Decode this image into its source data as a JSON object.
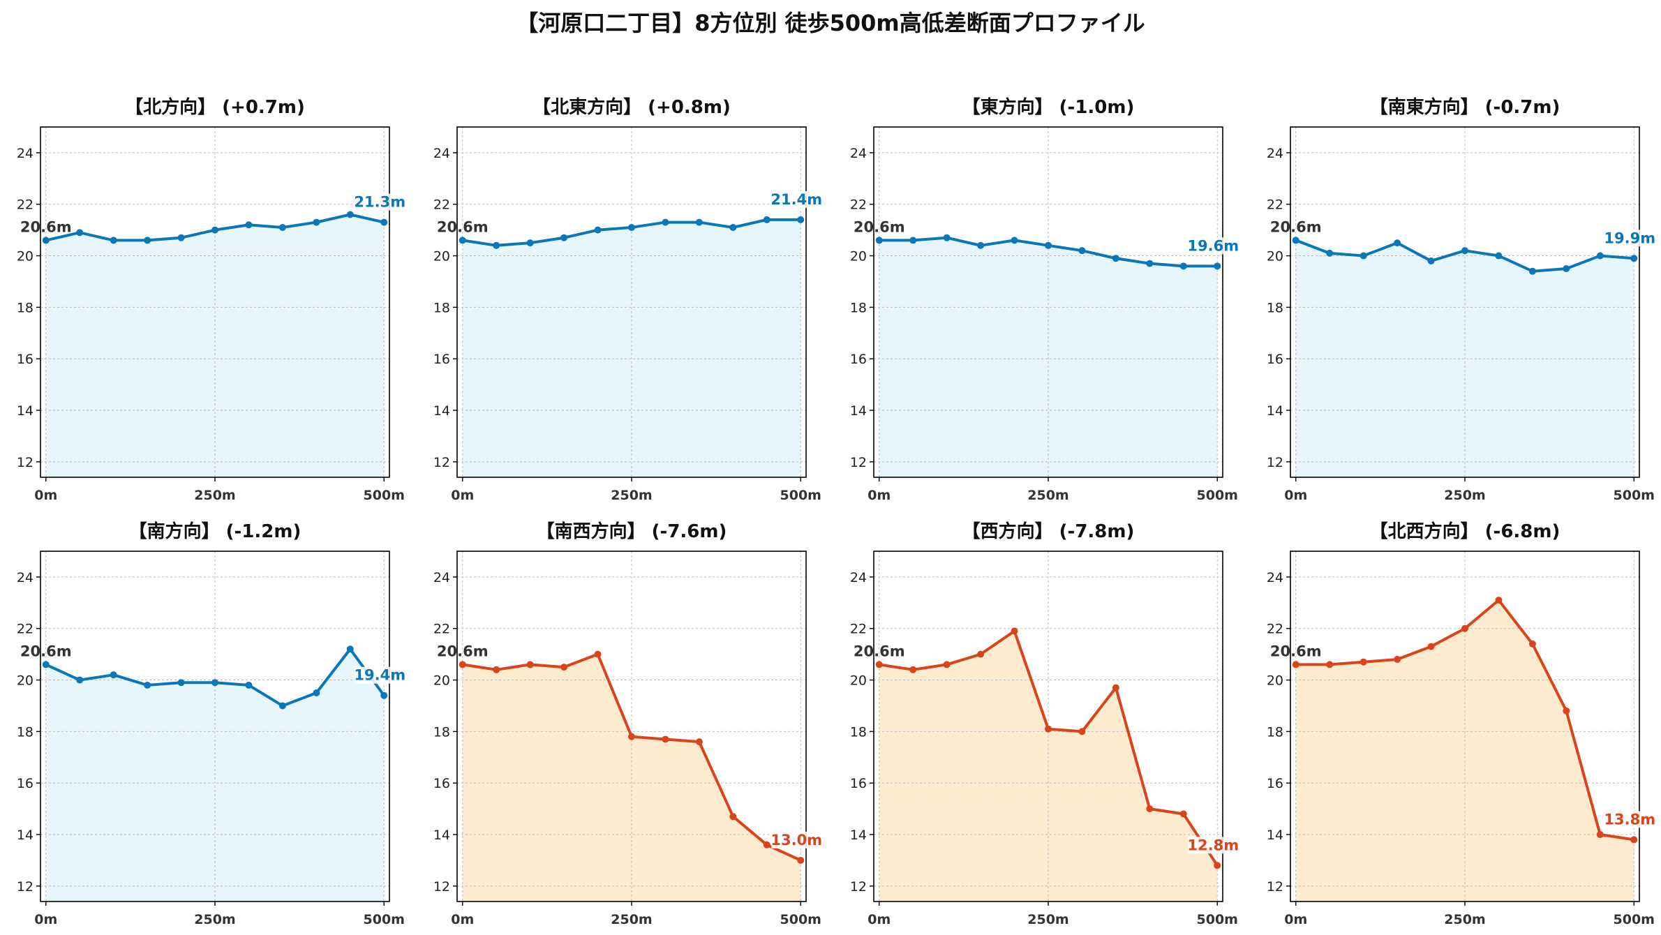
{
  "title": "【河原口二丁目】8方位別 徒歩500m高低差断面プロファイル",
  "colors": {
    "up_line": "#0a77b8",
    "up_fill": "#e6f6fc",
    "down_line": "#d9441a",
    "down_fill": "#fdebd0",
    "start_label": "#333333",
    "grid": "#bbbbbb"
  },
  "chart_data": [
    {
      "type": "area",
      "title": "【北方向】 (+0.7m)",
      "x": [
        0,
        50,
        100,
        150,
        200,
        250,
        300,
        350,
        400,
        450,
        500
      ],
      "values": [
        20.6,
        20.9,
        20.6,
        20.6,
        20.7,
        21.0,
        21.2,
        21.1,
        21.3,
        21.6,
        21.3
      ],
      "start_label": "20.6m",
      "end_label": "21.3m",
      "trend": "up",
      "xticks": [
        "0m",
        "250m",
        "500m"
      ],
      "yticks": [
        12,
        14,
        16,
        18,
        20,
        22,
        24
      ],
      "ylim": [
        11.4,
        25
      ],
      "xlim": [
        -8,
        508
      ],
      "grid": true
    },
    {
      "type": "area",
      "title": "【北東方向】 (+0.8m)",
      "x": [
        0,
        50,
        100,
        150,
        200,
        250,
        300,
        350,
        400,
        450,
        500
      ],
      "values": [
        20.6,
        20.4,
        20.5,
        20.7,
        21.0,
        21.1,
        21.3,
        21.3,
        21.1,
        21.4,
        21.4
      ],
      "start_label": "20.6m",
      "end_label": "21.4m",
      "trend": "up",
      "xticks": [
        "0m",
        "250m",
        "500m"
      ],
      "yticks": [
        12,
        14,
        16,
        18,
        20,
        22,
        24
      ],
      "ylim": [
        11.4,
        25
      ],
      "xlim": [
        -8,
        508
      ],
      "grid": true
    },
    {
      "type": "area",
      "title": "【東方向】 (-1.0m)",
      "x": [
        0,
        50,
        100,
        150,
        200,
        250,
        300,
        350,
        400,
        450,
        500
      ],
      "values": [
        20.6,
        20.6,
        20.7,
        20.4,
        20.6,
        20.4,
        20.2,
        19.9,
        19.7,
        19.6,
        19.6
      ],
      "start_label": "20.6m",
      "end_label": "19.6m",
      "trend": "up",
      "xticks": [
        "0m",
        "250m",
        "500m"
      ],
      "yticks": [
        12,
        14,
        16,
        18,
        20,
        22,
        24
      ],
      "ylim": [
        11.4,
        25
      ],
      "xlim": [
        -8,
        508
      ],
      "grid": true
    },
    {
      "type": "area",
      "title": "【南東方向】 (-0.7m)",
      "x": [
        0,
        50,
        100,
        150,
        200,
        250,
        300,
        350,
        400,
        450,
        500
      ],
      "values": [
        20.6,
        20.1,
        20.0,
        20.5,
        19.8,
        20.2,
        20.0,
        19.4,
        19.5,
        20.0,
        19.9
      ],
      "start_label": "20.6m",
      "end_label": "19.9m",
      "trend": "up",
      "xticks": [
        "0m",
        "250m",
        "500m"
      ],
      "yticks": [
        12,
        14,
        16,
        18,
        20,
        22,
        24
      ],
      "ylim": [
        11.4,
        25
      ],
      "xlim": [
        -8,
        508
      ],
      "grid": true
    },
    {
      "type": "area",
      "title": "【南方向】 (-1.2m)",
      "x": [
        0,
        50,
        100,
        150,
        200,
        250,
        300,
        350,
        400,
        450,
        500
      ],
      "values": [
        20.6,
        20.0,
        20.2,
        19.8,
        19.9,
        19.9,
        19.8,
        19.0,
        19.5,
        21.2,
        19.4
      ],
      "start_label": "20.6m",
      "end_label": "19.4m",
      "trend": "up",
      "xticks": [
        "0m",
        "250m",
        "500m"
      ],
      "yticks": [
        12,
        14,
        16,
        18,
        20,
        22,
        24
      ],
      "ylim": [
        11.4,
        25
      ],
      "xlim": [
        -8,
        508
      ],
      "grid": true
    },
    {
      "type": "area",
      "title": "【南西方向】 (-7.6m)",
      "x": [
        0,
        50,
        100,
        150,
        200,
        250,
        300,
        350,
        400,
        450,
        500
      ],
      "values": [
        20.6,
        20.4,
        20.6,
        20.5,
        21.0,
        17.8,
        17.7,
        17.6,
        14.7,
        13.6,
        13.0
      ],
      "start_label": "20.6m",
      "end_label": "13.0m",
      "trend": "down",
      "xticks": [
        "0m",
        "250m",
        "500m"
      ],
      "yticks": [
        12,
        14,
        16,
        18,
        20,
        22,
        24
      ],
      "ylim": [
        11.4,
        25
      ],
      "xlim": [
        -8,
        508
      ],
      "grid": true
    },
    {
      "type": "area",
      "title": "【西方向】 (-7.8m)",
      "x": [
        0,
        50,
        100,
        150,
        200,
        250,
        300,
        350,
        400,
        450,
        500
      ],
      "values": [
        20.6,
        20.4,
        20.6,
        21.0,
        21.9,
        18.1,
        18.0,
        19.7,
        15.0,
        14.8,
        12.8
      ],
      "start_label": "20.6m",
      "end_label": "12.8m",
      "trend": "down",
      "xticks": [
        "0m",
        "250m",
        "500m"
      ],
      "yticks": [
        12,
        14,
        16,
        18,
        20,
        22,
        24
      ],
      "ylim": [
        11.4,
        25
      ],
      "xlim": [
        -8,
        508
      ],
      "grid": true
    },
    {
      "type": "area",
      "title": "【北西方向】 (-6.8m)",
      "x": [
        0,
        50,
        100,
        150,
        200,
        250,
        300,
        350,
        400,
        450,
        500
      ],
      "values": [
        20.6,
        20.6,
        20.7,
        20.8,
        21.3,
        22.0,
        23.1,
        21.4,
        18.8,
        14.0,
        13.8
      ],
      "start_label": "20.6m",
      "end_label": "13.8m",
      "trend": "down",
      "xticks": [
        "0m",
        "250m",
        "500m"
      ],
      "yticks": [
        12,
        14,
        16,
        18,
        20,
        22,
        24
      ],
      "ylim": [
        11.4,
        25
      ],
      "xlim": [
        -8,
        508
      ],
      "grid": true
    }
  ]
}
